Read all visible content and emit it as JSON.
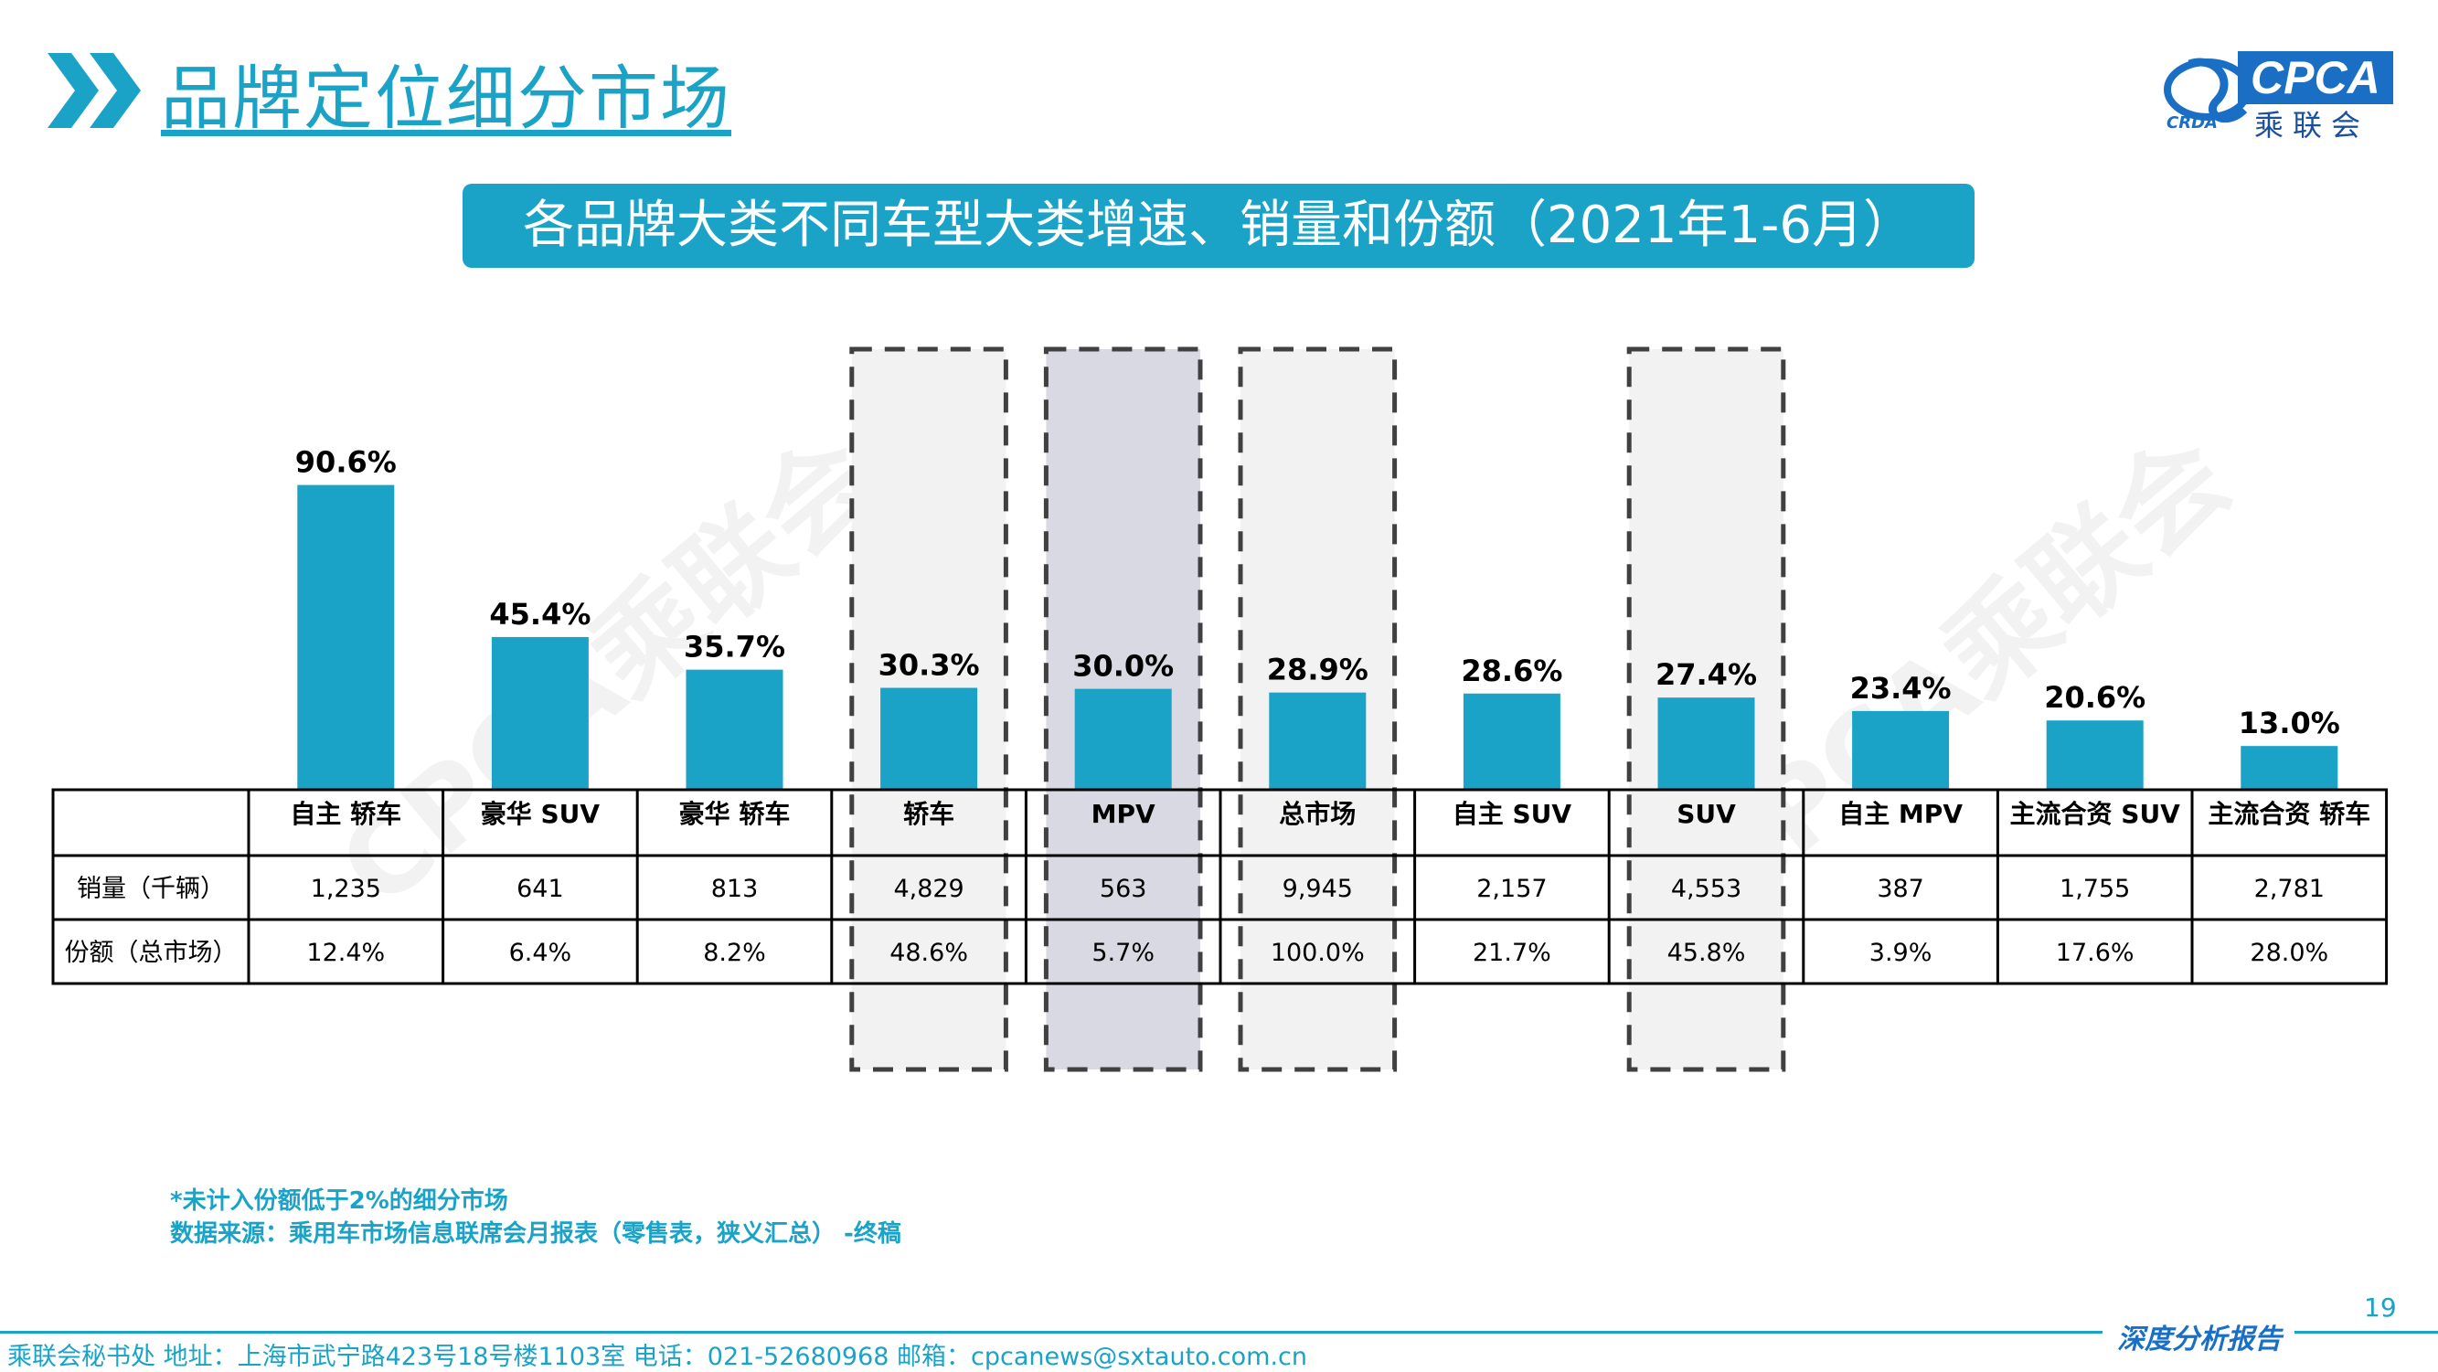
{
  "header": {
    "title": "品牌定位细分市场",
    "logo_brand": "CPCA",
    "logo_cn": "乘联会",
    "logo_sub": "CRDA",
    "chevron_icon": "double-chevron-right-icon"
  },
  "banner": {
    "text": "各品牌大类不同车型大类增速、销量和份额（2021年1-6月）"
  },
  "watermark": {
    "text": "CPCA乘联会"
  },
  "colors": {
    "accent": "#1aa3c7",
    "highlight_fill": "#d9d9e3",
    "box_fill": "#f2f2f2",
    "box_border": "#404040"
  },
  "chart_data": {
    "type": "bar",
    "categories": [
      "自主 轿车",
      "豪华 SUV",
      "豪华 轿车",
      "轿车",
      "MPV",
      "总市场",
      "自主 SUV",
      "SUV",
      "自主 MPV",
      "主流合资 SUV",
      "主流合资 轿车"
    ],
    "values": [
      90.6,
      45.4,
      35.7,
      30.3,
      30.0,
      28.9,
      28.6,
      27.4,
      23.4,
      20.6,
      13.0
    ],
    "value_labels": [
      "90.6%",
      "45.4%",
      "35.7%",
      "30.3%",
      "30.0%",
      "28.9%",
      "28.6%",
      "27.4%",
      "23.4%",
      "20.6%",
      "13.0%"
    ],
    "ylim": [
      0,
      100
    ],
    "grid": false,
    "highlighted": [
      "轿车",
      "MPV",
      "总市场",
      "SUV"
    ],
    "highlight_filled": [
      "MPV"
    ],
    "table": {
      "row_labels": [
        "销量（千辆）",
        "份额（总市场）"
      ],
      "rows": [
        [
          "1,235",
          "641",
          "813",
          "4,829",
          "563",
          "9,945",
          "2,157",
          "4,553",
          "387",
          "1,755",
          "2,781"
        ],
        [
          "12.4%",
          "6.4%",
          "8.2%",
          "48.6%",
          "5.7%",
          "100.0%",
          "21.7%",
          "45.8%",
          "3.9%",
          "17.6%",
          "28.0%"
        ]
      ]
    }
  },
  "notes": {
    "line1": "*未计入份额低于2%的细分市场",
    "line2": "数据来源：乘用车市场信息联席会月报表（零售表，狭义汇总） -终稿"
  },
  "footer": {
    "page_number": "19",
    "report_tag": "深度分析报告",
    "contact": "乘联会秘书处   地址：上海市武宁路423号18号楼1103室  电话：021-52680968   邮箱：cpcanews@sxtauto.com.cn"
  }
}
